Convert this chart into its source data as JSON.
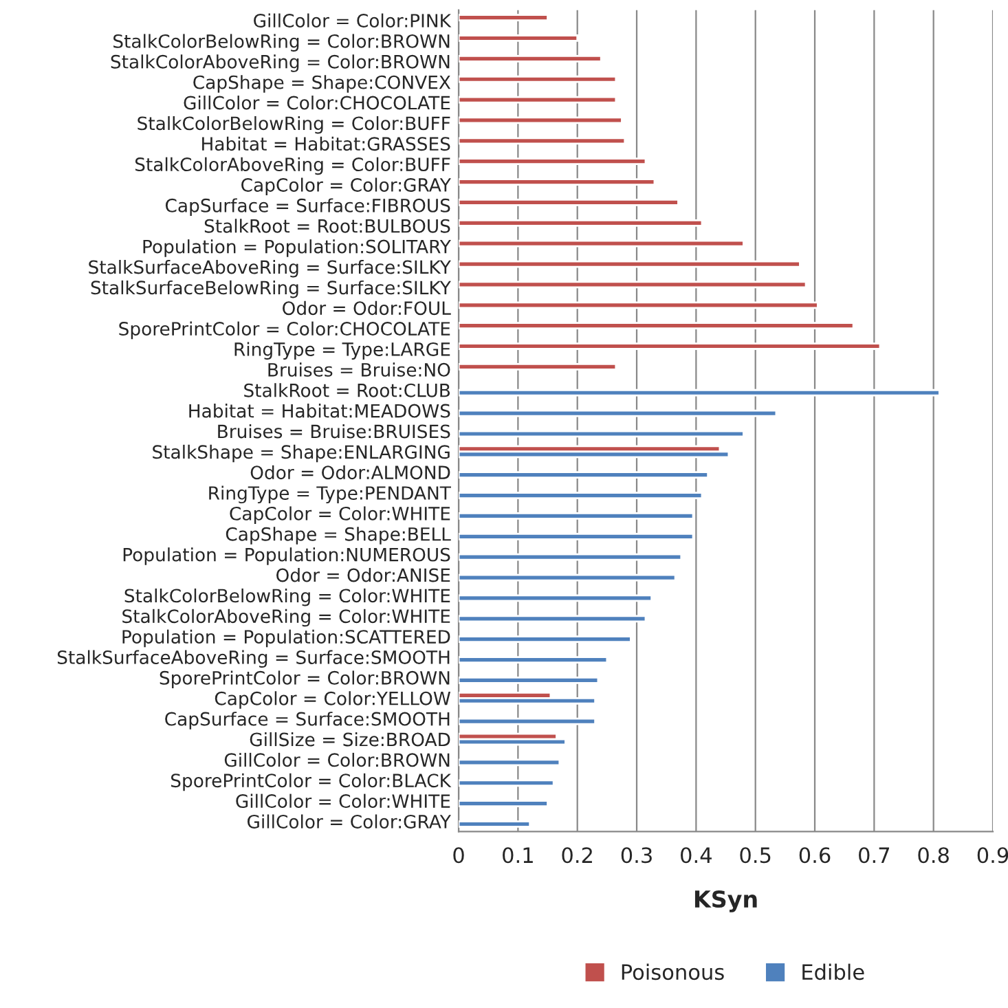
{
  "chart_data": {
    "type": "bar",
    "orientation": "horizontal",
    "xlabel": "KSyn",
    "categories": [
      "GillColor = Color:PINK",
      "StalkColorBelowRing = Color:BROWN",
      "StalkColorAboveRing = Color:BROWN",
      "CapShape = Shape:CONVEX",
      "GillColor = Color:CHOCOLATE",
      "StalkColorBelowRing = Color:BUFF",
      "Habitat = Habitat:GRASSES",
      "StalkColorAboveRing = Color:BUFF",
      "CapColor = Color:GRAY",
      "CapSurface = Surface:FIBROUS",
      "StalkRoot = Root:BULBOUS",
      "Population = Population:SOLITARY",
      "StalkSurfaceAboveRing = Surface:SILKY",
      "StalkSurfaceBelowRing = Surface:SILKY",
      "Odor = Odor:FOUL",
      "SporePrintColor = Color:CHOCOLATE",
      "RingType = Type:LARGE",
      "Bruises = Bruise:NO",
      "StalkRoot = Root:CLUB",
      "Habitat = Habitat:MEADOWS",
      "Bruises = Bruise:BRUISES",
      "StalkShape = Shape:ENLARGING",
      "Odor = Odor:ALMOND",
      "RingType = Type:PENDANT",
      "CapColor = Color:WHITE",
      "CapShape = Shape:BELL",
      "Population = Population:NUMEROUS",
      "Odor = Odor:ANISE",
      "StalkColorBelowRing = Color:WHITE",
      "StalkColorAboveRing = Color:WHITE",
      "Population = Population:SCATTERED",
      "StalkSurfaceAboveRing = Surface:SMOOTH",
      "SporePrintColor = Color:BROWN",
      "CapColor = Color:YELLOW",
      "CapSurface = Surface:SMOOTH",
      "GillSize = Size:BROAD",
      "GillColor = Color:BROWN",
      "SporePrintColor = Color:BLACK",
      "GillColor = Color:WHITE",
      "GillColor = Color:GRAY"
    ],
    "series": [
      {
        "name": "Poisonous",
        "color": "#c0504d",
        "values": [
          0.15,
          0.2,
          0.24,
          0.265,
          0.265,
          0.275,
          0.28,
          0.315,
          0.33,
          0.37,
          0.41,
          0.48,
          0.575,
          0.585,
          0.605,
          0.665,
          0.71,
          0.265,
          null,
          null,
          null,
          0.44,
          null,
          null,
          null,
          null,
          null,
          null,
          null,
          null,
          null,
          null,
          null,
          0.155,
          null,
          0.165,
          null,
          null,
          null,
          null
        ]
      },
      {
        "name": "Edible",
        "color": "#4f81bd",
        "values": [
          null,
          null,
          null,
          null,
          null,
          null,
          null,
          null,
          null,
          null,
          null,
          null,
          null,
          null,
          null,
          null,
          null,
          null,
          0.81,
          0.535,
          0.48,
          0.455,
          0.42,
          0.41,
          0.395,
          0.395,
          0.375,
          0.365,
          0.325,
          0.315,
          0.29,
          0.25,
          0.235,
          0.23,
          0.23,
          0.18,
          0.17,
          0.16,
          0.15,
          0.12
        ]
      }
    ],
    "xlim": [
      0,
      0.9
    ],
    "xticks": [
      0,
      0.1,
      0.2,
      0.3,
      0.4,
      0.5,
      0.6,
      0.7,
      0.8,
      0.9
    ],
    "grid": "x",
    "legend": "bottom"
  }
}
